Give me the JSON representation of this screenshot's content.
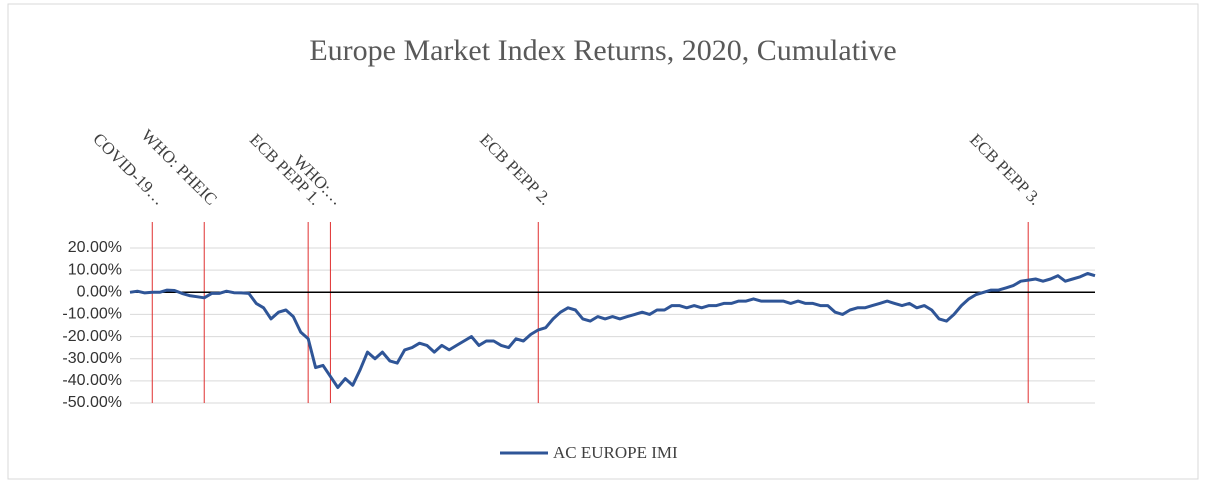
{
  "chart_data": {
    "type": "line",
    "title": "Europe Market Index Returns, 2020, Cumulative",
    "series": [
      {
        "name": "AC EUROPE IMI",
        "color": "#2f5597",
        "values": [
          0,
          0.5,
          -0.3,
          0,
          0,
          1,
          0.8,
          -0.5,
          -1.5,
          -2,
          -2.5,
          -0.5,
          -0.5,
          0.5,
          -0.2,
          -0.3,
          -0.5,
          -5,
          -7,
          -12,
          -9,
          -8,
          -11,
          -18,
          -21,
          -34,
          -33,
          -38,
          -43,
          -39,
          -42,
          -35,
          -27,
          -30,
          -27,
          -31,
          -32,
          -26,
          -25,
          -23,
          -24,
          -27,
          -24,
          -26,
          -24,
          -22,
          -20,
          -24,
          -22,
          -22,
          -24,
          -25,
          -21,
          -22,
          -19,
          -17,
          -16,
          -12,
          -9,
          -7,
          -8,
          -12,
          -13,
          -11,
          -12,
          -11,
          -12,
          -11,
          -10,
          -9,
          -10,
          -8,
          -8,
          -6,
          -6,
          -7,
          -6,
          -7,
          -6,
          -6,
          -5,
          -5,
          -4,
          -4,
          -3,
          -4,
          -4,
          -4,
          -4,
          -5,
          -4,
          -5,
          -5,
          -6,
          -6,
          -9,
          -10,
          -8,
          -7,
          -7,
          -6,
          -5,
          -4,
          -5,
          -6,
          -5,
          -7,
          -6,
          -8,
          -12,
          -13,
          -10,
          -6,
          -3,
          -1,
          0,
          1,
          1,
          2,
          3,
          5,
          5.5,
          6,
          5,
          6,
          7.5,
          5,
          6,
          7,
          8.5,
          7.5
        ]
      }
    ],
    "ylim": [
      -50,
      20
    ],
    "yticks": [
      {
        "value": -50,
        "label": "-50.00%"
      },
      {
        "value": -40,
        "label": "-40.00%"
      },
      {
        "value": -30,
        "label": "-30.00%"
      },
      {
        "value": -20,
        "label": "-20.00%"
      },
      {
        "value": -10,
        "label": "-10.00%"
      },
      {
        "value": 0,
        "label": "0.00%"
      },
      {
        "value": 10,
        "label": "10.00%"
      },
      {
        "value": 20,
        "label": "20.00%"
      }
    ],
    "grid": true,
    "annotations": [
      {
        "text": "COVID-19…",
        "index": 3
      },
      {
        "text": "WHO: PHEIC",
        "index": 10
      },
      {
        "text": "ECB PEPP 1.",
        "index": 24
      },
      {
        "text": "WHO:…",
        "index": 27
      },
      {
        "text": "ECB PEPP 2.",
        "index": 55
      },
      {
        "text": "ECB PEPP 3.",
        "index": 121
      }
    ],
    "annotation_color": "#e03030",
    "legend": "bottom"
  }
}
